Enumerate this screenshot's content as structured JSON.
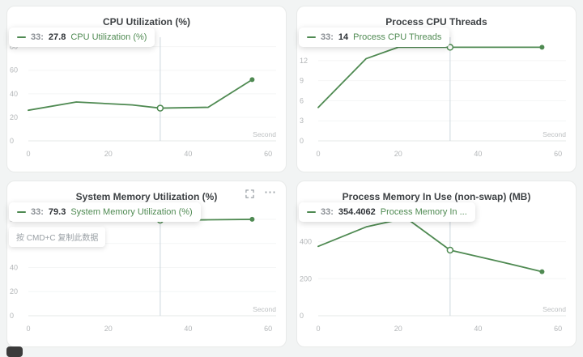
{
  "page": {
    "background": "#f2f4f4",
    "accent_green": "#4f8a52",
    "crosshair_color": "#ccd6dd"
  },
  "hint_tooltip": "按 CMD+C 复制此数据",
  "card_actions": {
    "fullscreen_icon": "expand",
    "more_icon": "⋯"
  },
  "chart_data": [
    {
      "type": "line",
      "title": "CPU Utilization (%)",
      "xlabel": "Second",
      "xlim": [
        0,
        62
      ],
      "ylim": [
        0,
        88
      ],
      "x_ticks": [
        0,
        20,
        40,
        60
      ],
      "y_ticks": [
        0,
        20,
        40,
        60,
        80
      ],
      "color": "#4f8a52",
      "x": [
        0,
        12,
        26,
        33,
        45,
        56
      ],
      "y": [
        26,
        33,
        30.5,
        27.8,
        28.5,
        52
      ],
      "marker": {
        "x": 33,
        "y": 27.8
      },
      "tooltip": {
        "step": "33:",
        "value": "27.8",
        "series": "CPU Utilization (%)"
      }
    },
    {
      "type": "line",
      "title": "Process CPU Threads",
      "xlabel": "Second",
      "xlim": [
        0,
        62
      ],
      "ylim": [
        0,
        15.5
      ],
      "x_ticks": [
        0,
        20,
        40,
        60
      ],
      "y_ticks": [
        0,
        3,
        6,
        9,
        12
      ],
      "color": "#4f8a52",
      "x": [
        0,
        12,
        20,
        33,
        45,
        56
      ],
      "y": [
        5,
        12.3,
        14,
        14,
        14,
        14
      ],
      "marker": {
        "x": 33,
        "y": 14
      },
      "tooltip": {
        "step": "33:",
        "value": "14",
        "series": "Process CPU Threads"
      }
    },
    {
      "type": "line",
      "title": "System Memory Utilization (%)",
      "xlabel": "Second",
      "xlim": [
        0,
        62
      ],
      "ylim": [
        0,
        86
      ],
      "x_ticks": [
        0,
        20,
        40,
        60
      ],
      "y_ticks": [
        0,
        20,
        40,
        60,
        80
      ],
      "color": "#4f8a52",
      "x": [
        0,
        12,
        26,
        33,
        45,
        56
      ],
      "y": [
        79.6,
        80.2,
        79.4,
        79.3,
        79.6,
        80
      ],
      "marker": {
        "x": 33,
        "y": 79.3
      },
      "tooltip": {
        "step": "33:",
        "value": "79.3",
        "series": "System Memory Utilization (%)"
      }
    },
    {
      "type": "line",
      "title": "Process Memory In Use (non-swap) (MB)",
      "xlabel": "Second",
      "xlim": [
        0,
        62
      ],
      "ylim": [
        0,
        560
      ],
      "x_ticks": [
        0,
        20,
        40,
        60
      ],
      "y_ticks": [
        0,
        200,
        400
      ],
      "color": "#4f8a52",
      "x": [
        0,
        12,
        22,
        33,
        45,
        56
      ],
      "y": [
        375,
        480,
        528,
        354.4062,
        295,
        238
      ],
      "marker": {
        "x": 33,
        "y": 354.4062
      },
      "tooltip": {
        "step": "33:",
        "value": "354.4062",
        "series": "Process Memory In ..."
      }
    }
  ]
}
